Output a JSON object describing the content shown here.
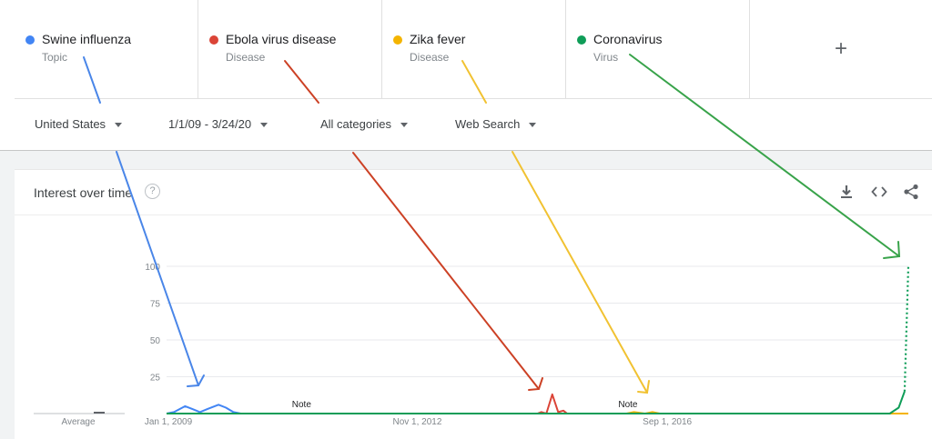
{
  "terms": [
    {
      "name": "Swine influenza",
      "type": "Topic",
      "color": "#4285f4"
    },
    {
      "name": "Ebola virus disease",
      "type": "Disease",
      "color": "#db4437"
    },
    {
      "name": "Zika fever",
      "type": "Disease",
      "color": "#f4b400"
    },
    {
      "name": "Coronavirus",
      "type": "Virus",
      "color": "#0f9d58"
    }
  ],
  "add_symbol": "+",
  "filters": {
    "region": "United States",
    "date_range": "1/1/09 - 3/24/20",
    "category": "All categories",
    "search_type": "Web Search"
  },
  "card": {
    "title": "Interest over time",
    "help": "?",
    "actions": {
      "download_icon": "download-icon",
      "embed_icon": "embed-icon",
      "share_icon": "share-icon"
    }
  },
  "chart_data": {
    "type": "line",
    "ylim": [
      0,
      100
    ],
    "yticks": [
      {
        "value": 25,
        "label": "25"
      },
      {
        "value": 50,
        "label": "50"
      },
      {
        "value": 75,
        "label": "75"
      },
      {
        "value": 100,
        "label": "100"
      }
    ],
    "xticks": [
      "Jan 1, 2009",
      "Nov 1, 2012",
      "Sep 1, 2016"
    ],
    "xtick_positions": [
      0,
      0.338,
      0.675
    ],
    "average_label": "Average",
    "notes": [
      {
        "x": 0.182,
        "label": "Note"
      },
      {
        "x": 0.622,
        "label": "Note"
      }
    ],
    "series": [
      {
        "name": "Swine influenza",
        "color": "#4285f4",
        "points": [
          [
            0,
            0
          ],
          [
            0.01,
            1
          ],
          [
            0.025,
            5
          ],
          [
            0.035,
            3
          ],
          [
            0.045,
            1
          ],
          [
            0.055,
            3
          ],
          [
            0.07,
            6
          ],
          [
            0.08,
            4
          ],
          [
            0.09,
            1
          ],
          [
            0.1,
            0
          ],
          [
            1,
            0
          ]
        ]
      },
      {
        "name": "Ebola virus disease",
        "color": "#db4437",
        "points": [
          [
            0,
            0
          ],
          [
            0.5,
            0
          ],
          [
            0.505,
            1
          ],
          [
            0.512,
            0
          ],
          [
            0.52,
            13
          ],
          [
            0.528,
            1
          ],
          [
            0.535,
            2
          ],
          [
            0.54,
            0
          ],
          [
            1,
            0
          ]
        ]
      },
      {
        "name": "Zika fever",
        "color": "#f4b400",
        "points": [
          [
            0,
            0
          ],
          [
            0.62,
            0
          ],
          [
            0.63,
            1
          ],
          [
            0.645,
            0
          ],
          [
            0.655,
            1
          ],
          [
            0.665,
            0
          ],
          [
            1,
            0
          ]
        ]
      },
      {
        "name": "Coronavirus",
        "color": "#0f9d58",
        "points": [
          [
            0,
            0
          ],
          [
            0.975,
            0
          ],
          [
            0.987,
            4
          ],
          [
            0.995,
            15
          ]
        ],
        "dotted_tail": [
          [
            0.995,
            15
          ],
          [
            1.0,
            100
          ]
        ]
      }
    ]
  },
  "annotations": {
    "arrow_colors": [
      "#4a86e8",
      "#cc4125",
      "#f1c232",
      "#38a34a"
    ]
  }
}
